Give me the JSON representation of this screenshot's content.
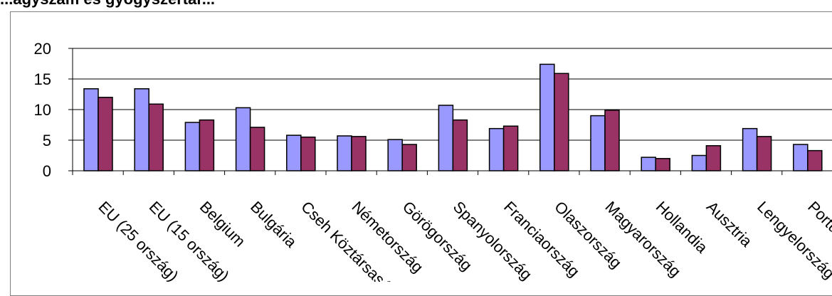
{
  "title": "...ágyszám és gyógyszertár...",
  "chart_data": {
    "type": "bar",
    "title": "",
    "xlabel": "",
    "ylabel": "",
    "ylim": [
      0,
      20
    ],
    "yticks": [
      0,
      5,
      10,
      15,
      20
    ],
    "grid": true,
    "legend": "none",
    "categories": [
      "EU (25 ország)",
      "EU (15 ország)",
      "Belgium",
      "Bulgária",
      "Cseh Köztársaság",
      "Németország",
      "Görögország",
      "Spanyolország",
      "Franciaország",
      "Olaszország",
      "Magyarország",
      "Hollandia",
      "Ausztria",
      "Lengyelország",
      "Portugália"
    ],
    "series": [
      {
        "color": "#9999ff",
        "values": [
          13.4,
          13.4,
          7.9,
          10.3,
          5.8,
          5.7,
          5.1,
          10.7,
          6.9,
          17.4,
          9.0,
          2.2,
          2.5,
          6.9,
          4.3
        ]
      },
      {
        "color": "#993366",
        "values": [
          12.0,
          10.9,
          8.3,
          7.1,
          5.5,
          5.6,
          4.3,
          8.3,
          7.3,
          15.9,
          9.9,
          2.0,
          4.1,
          5.6,
          3.3
        ]
      }
    ]
  },
  "colors": {
    "grid": "#000000",
    "axis": "#000000",
    "frame": "#808080"
  }
}
